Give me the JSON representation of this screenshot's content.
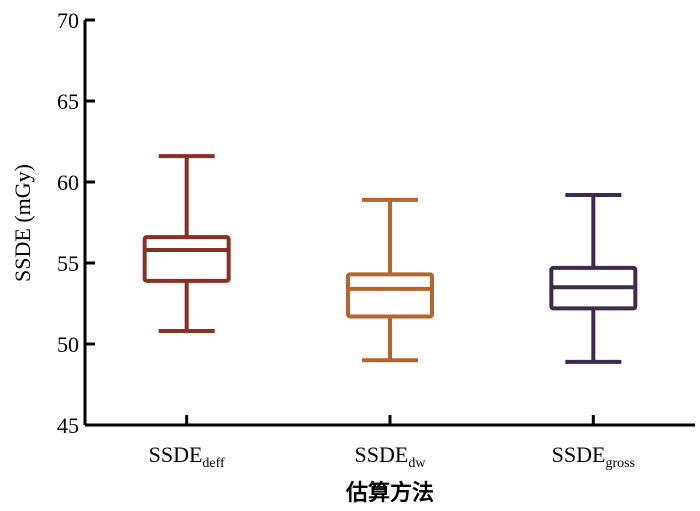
{
  "chart_data": {
    "type": "box",
    "title": "",
    "xlabel": "估算方法",
    "ylabel": "SSDE (mGy)",
    "ylim": [
      45,
      70
    ],
    "yticks": [
      45,
      50,
      55,
      60,
      65,
      70
    ],
    "grid": false,
    "categories": [
      {
        "main": "SSDE",
        "sub": "deff"
      },
      {
        "main": "SSDE",
        "sub": "dw"
      },
      {
        "main": "SSDE",
        "sub": "gross"
      }
    ],
    "series": [
      {
        "min": 50.8,
        "q1": 53.9,
        "median": 55.8,
        "q3": 56.6,
        "max": 61.6,
        "color": "#8b2e24"
      },
      {
        "min": 49.0,
        "q1": 51.7,
        "median": 53.4,
        "q3": 54.3,
        "max": 58.9,
        "color": "#b8632a"
      },
      {
        "min": 48.9,
        "q1": 52.2,
        "median": 53.5,
        "q3": 54.7,
        "max": 59.2,
        "color": "#3d2a4e"
      }
    ]
  }
}
